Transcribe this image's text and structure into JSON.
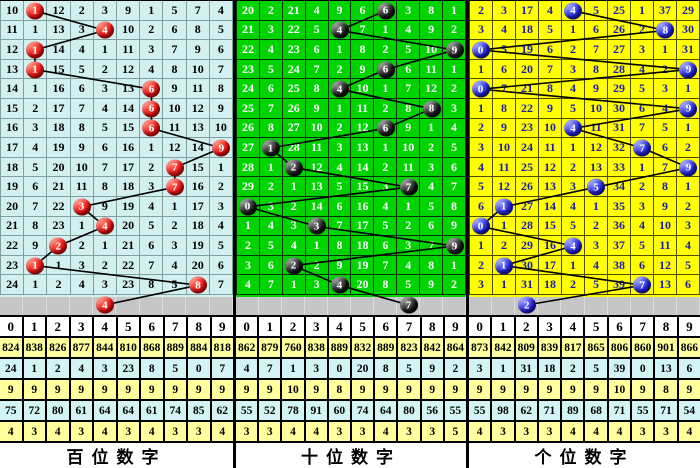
{
  "chart_data": {
    "type": "table",
    "stats_row_colors": [
      "yellow",
      "cyan",
      "yellow",
      "cyan",
      "yellow"
    ],
    "panels": [
      {
        "id": "hundreds",
        "footer_label": "百位数字",
        "digit_header": [
          "0",
          "1",
          "2",
          "3",
          "4",
          "5",
          "6",
          "7",
          "8",
          "9"
        ],
        "theme": {
          "bg": "#d3f0f0",
          "grid": "#7fa0a0",
          "text": "#000000",
          "ball": "red"
        },
        "rows": [
          {
            "cells": [
              10,
              null,
              12,
              2,
              3,
              9,
              1,
              5,
              7,
              4
            ],
            "ball": 1
          },
          {
            "cells": [
              11,
              1,
              13,
              3,
              null,
              10,
              2,
              6,
              8,
              5
            ],
            "ball": 4
          },
          {
            "cells": [
              12,
              null,
              14,
              4,
              1,
              11,
              3,
              7,
              9,
              6
            ],
            "ball": 1
          },
          {
            "cells": [
              13,
              null,
              15,
              5,
              2,
              12,
              4,
              8,
              10,
              7
            ],
            "ball": 1
          },
          {
            "cells": [
              14,
              1,
              16,
              6,
              3,
              13,
              null,
              9,
              11,
              8
            ],
            "ball": 6
          },
          {
            "cells": [
              15,
              2,
              17,
              7,
              4,
              14,
              null,
              10,
              12,
              9
            ],
            "ball": 6
          },
          {
            "cells": [
              16,
              3,
              18,
              8,
              5,
              15,
              null,
              11,
              13,
              10
            ],
            "ball": 6
          },
          {
            "cells": [
              17,
              4,
              19,
              9,
              6,
              16,
              1,
              12,
              14,
              null
            ],
            "ball": 9
          },
          {
            "cells": [
              18,
              5,
              20,
              10,
              7,
              17,
              2,
              null,
              15,
              1
            ],
            "ball": 7
          },
          {
            "cells": [
              19,
              6,
              21,
              11,
              8,
              18,
              3,
              null,
              16,
              2
            ],
            "ball": 7
          },
          {
            "cells": [
              20,
              7,
              22,
              null,
              9,
              19,
              4,
              1,
              17,
              3
            ],
            "ball": 3
          },
          {
            "cells": [
              21,
              8,
              23,
              1,
              null,
              20,
              5,
              2,
              18,
              4
            ],
            "ball": 4
          },
          {
            "cells": [
              22,
              9,
              null,
              2,
              1,
              21,
              6,
              3,
              19,
              5
            ],
            "ball": 2
          },
          {
            "cells": [
              23,
              null,
              1,
              3,
              2,
              22,
              7,
              4,
              20,
              6
            ],
            "ball": 1
          },
          {
            "cells": [
              24,
              1,
              2,
              4,
              3,
              23,
              8,
              5,
              null,
              7
            ],
            "ball": 8
          }
        ],
        "pending_ball": 4,
        "drawn_digits": [
          1,
          4,
          1,
          1,
          6,
          6,
          6,
          9,
          7,
          7,
          3,
          4,
          2,
          1,
          8
        ],
        "stats": [
          [
            824,
            838,
            826,
            877,
            844,
            810,
            868,
            889,
            884,
            818
          ],
          [
            24,
            1,
            2,
            4,
            3,
            23,
            8,
            5,
            0,
            7
          ],
          [
            9,
            9,
            9,
            9,
            9,
            9,
            9,
            9,
            9,
            9
          ],
          [
            75,
            72,
            80,
            61,
            64,
            64,
            61,
            74,
            85,
            62
          ],
          [
            4,
            3,
            4,
            3,
            4,
            3,
            4,
            3,
            3,
            4
          ]
        ]
      },
      {
        "id": "tens",
        "footer_label": "十位数字",
        "digit_header": [
          "0",
          "1",
          "2",
          "3",
          "4",
          "5",
          "6",
          "7",
          "8",
          "9"
        ],
        "theme": {
          "bg": "#00d400",
          "grid": "#003300",
          "text": "#ffffff",
          "ball": "black"
        },
        "rows": [
          {
            "cells": [
              20,
              2,
              21,
              4,
              9,
              6,
              null,
              3,
              8,
              1
            ],
            "ball": 6
          },
          {
            "cells": [
              21,
              3,
              22,
              5,
              null,
              7,
              1,
              4,
              9,
              2
            ],
            "ball": 4
          },
          {
            "cells": [
              22,
              4,
              23,
              6,
              1,
              8,
              2,
              5,
              10,
              null
            ],
            "ball": 9
          },
          {
            "cells": [
              23,
              5,
              24,
              7,
              2,
              9,
              null,
              6,
              11,
              1
            ],
            "ball": 6
          },
          {
            "cells": [
              24,
              6,
              25,
              8,
              null,
              10,
              1,
              7,
              12,
              2
            ],
            "ball": 4
          },
          {
            "cells": [
              25,
              7,
              26,
              9,
              1,
              11,
              2,
              8,
              null,
              3
            ],
            "ball": 8
          },
          {
            "cells": [
              26,
              8,
              27,
              10,
              2,
              12,
              null,
              9,
              1,
              4
            ],
            "ball": 6
          },
          {
            "cells": [
              27,
              null,
              28,
              11,
              3,
              13,
              1,
              10,
              2,
              5
            ],
            "ball": 1
          },
          {
            "cells": [
              28,
              1,
              null,
              12,
              4,
              14,
              2,
              11,
              3,
              6
            ],
            "ball": 2
          },
          {
            "cells": [
              29,
              2,
              1,
              13,
              5,
              15,
              3,
              null,
              4,
              7
            ],
            "ball": 7
          },
          {
            "cells": [
              null,
              3,
              2,
              14,
              6,
              16,
              4,
              1,
              5,
              8
            ],
            "ball": 0
          },
          {
            "cells": [
              1,
              4,
              3,
              null,
              7,
              17,
              5,
              2,
              6,
              9
            ],
            "ball": 3
          },
          {
            "cells": [
              2,
              5,
              4,
              1,
              8,
              18,
              6,
              3,
              7,
              null
            ],
            "ball": 9
          },
          {
            "cells": [
              3,
              6,
              null,
              2,
              9,
              19,
              7,
              4,
              8,
              1
            ],
            "ball": 2
          },
          {
            "cells": [
              4,
              7,
              1,
              3,
              null,
              20,
              8,
              5,
              9,
              2
            ],
            "ball": 4
          }
        ],
        "pending_ball": 7,
        "drawn_digits": [
          6,
          4,
          9,
          6,
          4,
          8,
          6,
          1,
          2,
          7,
          0,
          3,
          9,
          2,
          4
        ],
        "stats": [
          [
            862,
            879,
            760,
            838,
            889,
            832,
            889,
            823,
            842,
            864
          ],
          [
            4,
            7,
            1,
            3,
            0,
            20,
            8,
            5,
            9,
            2
          ],
          [
            9,
            9,
            10,
            9,
            8,
            9,
            9,
            9,
            9,
            9
          ],
          [
            55,
            52,
            78,
            91,
            60,
            74,
            64,
            80,
            56,
            55
          ],
          [
            3,
            3,
            4,
            4,
            3,
            3,
            4,
            3,
            3,
            5
          ]
        ]
      },
      {
        "id": "units",
        "footer_label": "个位数字",
        "digit_header": [
          "0",
          "1",
          "2",
          "3",
          "4",
          "5",
          "6",
          "7",
          "8",
          "9"
        ],
        "theme": {
          "bg": "#ffff00",
          "grid": "#4d4d00",
          "text": "#1c1caa",
          "ball": "blue"
        },
        "rows": [
          {
            "cells": [
              2,
              3,
              17,
              4,
              null,
              5,
              25,
              1,
              37,
              29
            ],
            "ball": 4
          },
          {
            "cells": [
              3,
              4,
              18,
              5,
              1,
              6,
              26,
              2,
              null,
              30
            ],
            "ball": 8
          },
          {
            "cells": [
              null,
              5,
              19,
              6,
              2,
              7,
              27,
              3,
              1,
              31
            ],
            "ball": 0
          },
          {
            "cells": [
              1,
              6,
              20,
              7,
              3,
              8,
              28,
              4,
              2,
              null
            ],
            "ball": 9
          },
          {
            "cells": [
              null,
              7,
              21,
              8,
              4,
              9,
              29,
              5,
              3,
              1
            ],
            "ball": 0
          },
          {
            "cells": [
              1,
              8,
              22,
              9,
              5,
              10,
              30,
              6,
              4,
              null
            ],
            "ball": 9
          },
          {
            "cells": [
              2,
              9,
              23,
              10,
              null,
              11,
              31,
              7,
              5,
              1
            ],
            "ball": 4
          },
          {
            "cells": [
              3,
              10,
              24,
              11,
              1,
              12,
              32,
              null,
              6,
              2
            ],
            "ball": 7
          },
          {
            "cells": [
              4,
              11,
              25,
              12,
              2,
              13,
              33,
              1,
              7,
              null
            ],
            "ball": 9
          },
          {
            "cells": [
              5,
              12,
              26,
              13,
              3,
              null,
              34,
              2,
              8,
              1
            ],
            "ball": 5
          },
          {
            "cells": [
              6,
              null,
              27,
              14,
              4,
              1,
              35,
              3,
              9,
              2
            ],
            "ball": 1
          },
          {
            "cells": [
              null,
              1,
              28,
              15,
              5,
              2,
              36,
              4,
              10,
              3
            ],
            "ball": 0
          },
          {
            "cells": [
              1,
              2,
              29,
              16,
              null,
              3,
              37,
              5,
              11,
              4
            ],
            "ball": 4
          },
          {
            "cells": [
              2,
              null,
              30,
              17,
              1,
              4,
              38,
              6,
              12,
              5
            ],
            "ball": 1
          },
          {
            "cells": [
              3,
              1,
              31,
              18,
              2,
              5,
              39,
              null,
              13,
              6
            ],
            "ball": 7
          }
        ],
        "pending_ball": 2,
        "drawn_digits": [
          4,
          8,
          0,
          9,
          0,
          9,
          4,
          7,
          9,
          5,
          1,
          0,
          4,
          1,
          7
        ],
        "stats": [
          [
            873,
            842,
            809,
            839,
            817,
            865,
            806,
            860,
            901,
            866
          ],
          [
            3,
            1,
            31,
            18,
            2,
            5,
            39,
            0,
            13,
            6
          ],
          [
            9,
            9,
            9,
            9,
            9,
            9,
            10,
            9,
            8,
            9
          ],
          [
            55,
            98,
            62,
            71,
            89,
            68,
            71,
            55,
            71,
            54
          ],
          [
            4,
            3,
            3,
            3,
            4,
            4,
            4,
            3,
            3,
            4
          ]
        ]
      }
    ]
  }
}
